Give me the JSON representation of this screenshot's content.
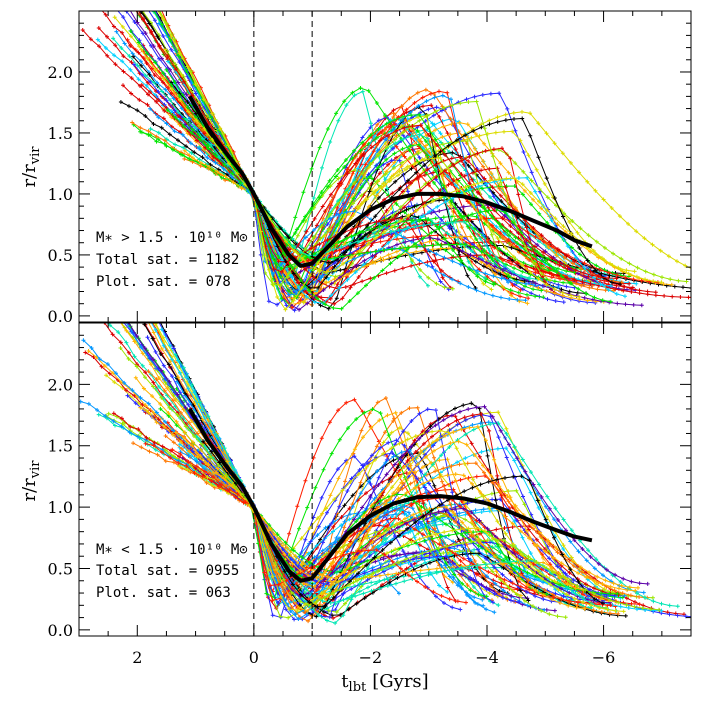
{
  "chart_data": {
    "type": "line",
    "xlabel": "t",
    "xlabel_subscript": "lbt",
    "xlabel_unit": "[Gyrs]",
    "ylabel": "r/r",
    "ylabel_subscript": "vir",
    "xlim": [
      3,
      -7.5
    ],
    "ylim": [
      -0.05,
      2.5
    ],
    "x_ticks": [
      2,
      0,
      -2,
      -4,
      -6
    ],
    "x_tick_labels": [
      "2",
      "0",
      "−2",
      "−4",
      "−6"
    ],
    "y_ticks": [
      0.0,
      0.5,
      1.0,
      1.5,
      2.0
    ],
    "y_tick_labels": [
      "0.0",
      "0.5",
      "1.0",
      "1.5",
      "2.0"
    ],
    "reference_lines_x": [
      0,
      -1
    ],
    "satellite_colors": [
      "#000000",
      "#5a00a8",
      "#2a2aff",
      "#0096ff",
      "#00d2ff",
      "#00e6b4",
      "#00e600",
      "#9be600",
      "#dcdc00",
      "#ffb400",
      "#ff7800",
      "#ff1e00",
      "#dc0000"
    ],
    "panels": [
      {
        "id": "top",
        "annotation_lines": [
          "M∗ > 1.5 · 10¹⁰ M⊙",
          "Total sat. = 1182",
          "Plot. sat. = 078"
        ],
        "total_sat": 1182,
        "plotted_sat": 78,
        "median": {
          "x": [
            1.1,
            0.8,
            0.5,
            0.2,
            0.0,
            -0.3,
            -0.6,
            -0.8,
            -1.0,
            -1.3,
            -1.6,
            -2.0,
            -2.4,
            -2.8,
            -3.2,
            -3.6,
            -4.0,
            -4.4,
            -4.8,
            -5.2,
            -5.5,
            -5.8
          ],
          "y": [
            1.8,
            1.55,
            1.35,
            1.17,
            1.0,
            0.72,
            0.5,
            0.41,
            0.43,
            0.58,
            0.73,
            0.87,
            0.96,
            1.0,
            1.0,
            0.98,
            0.93,
            0.86,
            0.78,
            0.7,
            0.62,
            0.57
          ]
        }
      },
      {
        "id": "bottom",
        "annotation_lines": [
          "M∗ < 1.5 · 10¹⁰ M⊙",
          "Total sat. = 0955",
          "Plot. sat. = 063"
        ],
        "total_sat": 955,
        "plotted_sat": 63,
        "median": {
          "x": [
            1.1,
            0.8,
            0.5,
            0.2,
            0.0,
            -0.3,
            -0.6,
            -0.8,
            -1.0,
            -1.3,
            -1.6,
            -2.0,
            -2.4,
            -2.8,
            -3.2,
            -3.6,
            -4.0,
            -4.4,
            -4.8,
            -5.2,
            -5.5,
            -5.8
          ],
          "y": [
            1.8,
            1.55,
            1.35,
            1.17,
            1.0,
            0.7,
            0.48,
            0.4,
            0.42,
            0.6,
            0.78,
            0.93,
            1.03,
            1.08,
            1.09,
            1.07,
            1.03,
            0.96,
            0.88,
            0.81,
            0.76,
            0.73
          ]
        }
      }
    ]
  }
}
